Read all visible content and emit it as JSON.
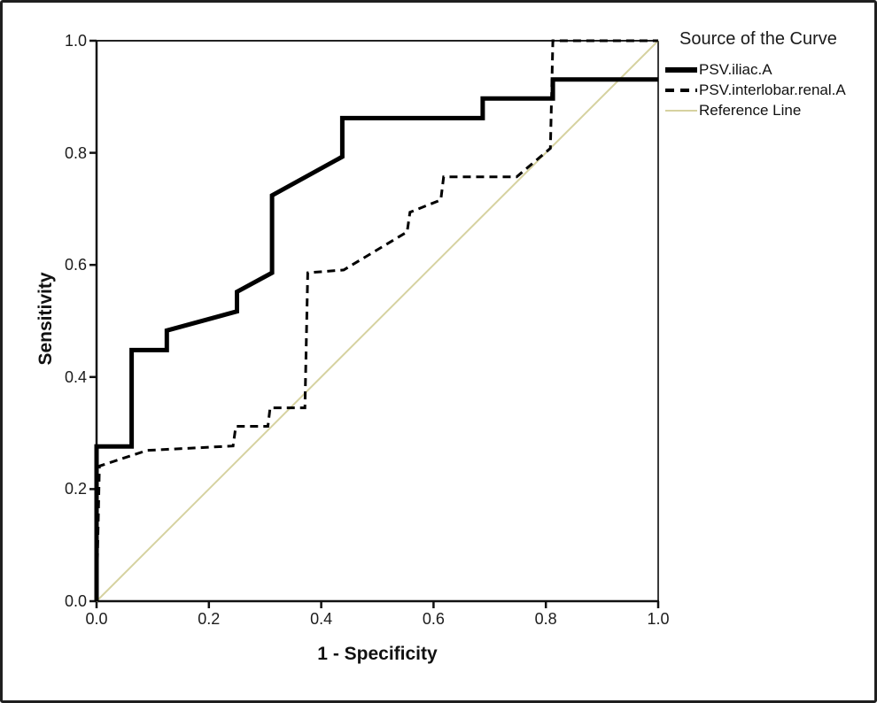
{
  "legend": {
    "title": "Source of the Curve",
    "items": [
      {
        "label": "PSV.iliac.A",
        "swatch": "thick-solid-line"
      },
      {
        "label": "PSV.interlobar.renal.A",
        "swatch": "dashed-line"
      },
      {
        "label": "Reference Line",
        "swatch": "thin-reference-line"
      }
    ]
  },
  "colors": {
    "curve": "#000000",
    "reference": "#d6d2a0",
    "frame": "#1f1f1f",
    "background": "#ffffff"
  },
  "chart_data": {
    "type": "line",
    "subtype": "ROC curve (step plot)",
    "title": "",
    "xlabel": "1 - Specificity",
    "ylabel": "Sensitivity",
    "xlim": [
      0,
      1
    ],
    "ylim": [
      0,
      1
    ],
    "grid": false,
    "legend_position": "outside-top-right",
    "x_ticks": [
      "0.0",
      "0.2",
      "0.4",
      "0.6",
      "0.8",
      "1.0"
    ],
    "y_ticks": [
      "0.0",
      "0.2",
      "0.4",
      "0.6",
      "0.8",
      "1.0"
    ],
    "series": [
      {
        "name": "Reference Line",
        "style": "solid",
        "width": 2,
        "color": "#d6d2a0",
        "points": [
          [
            0,
            0
          ],
          [
            1,
            1
          ]
        ]
      },
      {
        "name": "PSV.interlobar.renal.A",
        "style": "dashed",
        "width": 3,
        "color": "#000000",
        "points": [
          [
            0,
            0
          ],
          [
            0.005,
            0.241
          ],
          [
            0.09,
            0.269
          ],
          [
            0.243,
            0.277
          ],
          [
            0.248,
            0.312
          ],
          [
            0.305,
            0.312
          ],
          [
            0.309,
            0.345
          ],
          [
            0.371,
            0.345
          ],
          [
            0.376,
            0.586
          ],
          [
            0.44,
            0.591
          ],
          [
            0.553,
            0.659
          ],
          [
            0.558,
            0.694
          ],
          [
            0.613,
            0.716
          ],
          [
            0.618,
            0.757
          ],
          [
            0.748,
            0.757
          ],
          [
            0.808,
            0.808
          ],
          [
            0.8125,
            1
          ],
          [
            1,
            1
          ]
        ]
      },
      {
        "name": "PSV.iliac.A",
        "style": "solid",
        "width": 5,
        "color": "#000000",
        "points": [
          [
            0,
            0
          ],
          [
            0,
            0.276
          ],
          [
            0.0625,
            0.276
          ],
          [
            0.0625,
            0.448
          ],
          [
            0.125,
            0.448
          ],
          [
            0.125,
            0.483
          ],
          [
            0.25,
            0.517
          ],
          [
            0.25,
            0.552
          ],
          [
            0.3125,
            0.586
          ],
          [
            0.3125,
            0.724
          ],
          [
            0.4375,
            0.793
          ],
          [
            0.4375,
            0.862
          ],
          [
            0.6875,
            0.862
          ],
          [
            0.6875,
            0.897
          ],
          [
            0.8125,
            0.897
          ],
          [
            0.8125,
            0.931
          ],
          [
            1,
            0.931
          ]
        ]
      }
    ]
  }
}
